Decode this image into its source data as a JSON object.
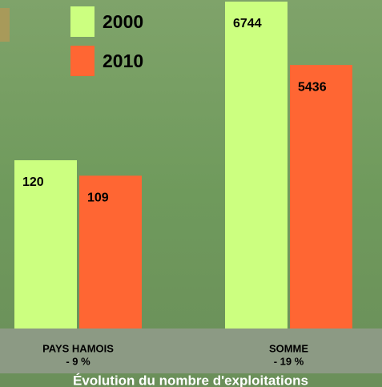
{
  "chart_data": {
    "type": "bar",
    "title": "Évolution du nombre d'exploitations",
    "categories": [
      "PAYS HAMOIS",
      "SOMME"
    ],
    "category_notes": [
      "- 9 %",
      "- 19 %"
    ],
    "series": [
      {
        "name": "2000",
        "color": "#ccff80",
        "values": [
          120,
          6744
        ]
      },
      {
        "name": "2010",
        "color": "#ff6633",
        "values": [
          109,
          5436
        ]
      }
    ]
  }
}
